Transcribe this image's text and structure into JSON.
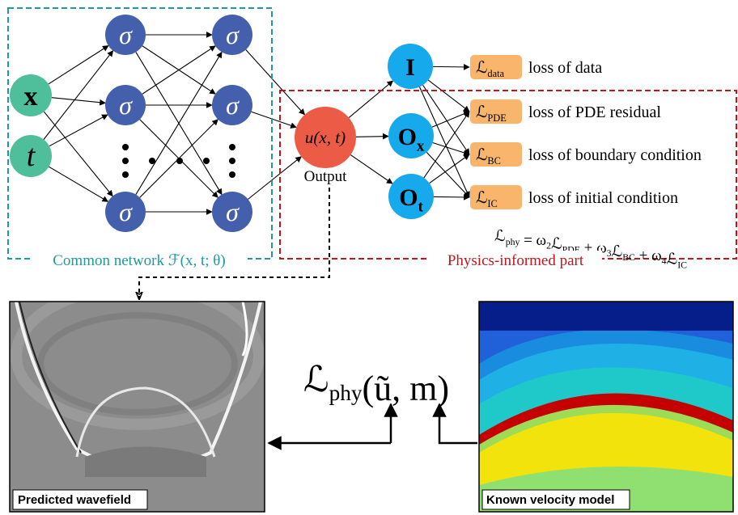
{
  "network": {
    "label": "Common network ℱ(x, t; θ)",
    "inputs": [
      "x",
      "t"
    ],
    "hidden": [
      "σ",
      "σ",
      "σ",
      "σ",
      "σ",
      "σ"
    ]
  },
  "output": {
    "label": "u(x, t)",
    "caption": "Output"
  },
  "operators": [
    {
      "text": "I"
    },
    {
      "text": "O",
      "sub": "x"
    },
    {
      "text": "O",
      "sub": "t"
    }
  ],
  "losses": [
    {
      "symbol": "ℒ",
      "sub": "data",
      "description": "loss of data"
    },
    {
      "symbol": "ℒ",
      "sub": "PDE",
      "description": "loss of PDE residual"
    },
    {
      "symbol": "ℒ",
      "sub": "BC",
      "description": "loss of boundary condition"
    },
    {
      "symbol": "ℒ",
      "sub": "IC",
      "description": "loss of initial condition"
    }
  ],
  "physics_loss": [
    {
      "text": "ℒ",
      "sub": "phy"
    },
    {
      "text": " = ω",
      "sub": "2"
    },
    {
      "text": "ℒ",
      "sub": "PDE"
    },
    {
      "text": " + ω",
      "sub": "3"
    },
    {
      "text": "ℒ",
      "sub": "BC"
    },
    {
      "text": " + ω",
      "sub": "4"
    },
    {
      "text": "ℒ",
      "sub": "IC"
    }
  ],
  "physics_part_label": "Physics-informed part",
  "residual_formula": [
    {
      "text": "ℒ",
      "sub": "phy"
    },
    {
      "text": "(ũ, m)"
    }
  ],
  "panels": {
    "left": "Predicted wavefield",
    "right": "Known velocity model"
  }
}
